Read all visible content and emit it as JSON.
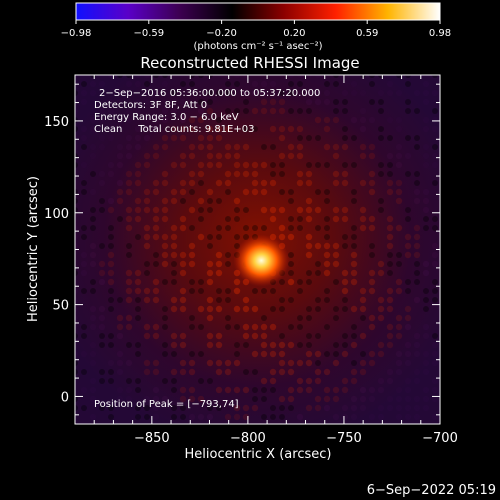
{
  "colorbar": {
    "ticks": [
      "-0.98",
      "-0.59",
      "-0.20",
      "0.20",
      "0.59",
      "0.98"
    ],
    "unit_label": "(photons cm⁻² s⁻¹ asec⁻²)",
    "colors": [
      "#1010ff",
      "#5a00c8",
      "#3c0050",
      "#000000",
      "#8c0000",
      "#ff2000",
      "#ffb400",
      "#ffffff"
    ]
  },
  "chart_data": {
    "type": "heatmap",
    "title": "Reconstructed RHESSI Image",
    "xlabel": "Heliocentric X (arcsec)",
    "ylabel": "Heliocentric Y (arcsec)",
    "xlim": [
      -890,
      -700
    ],
    "ylim": [
      -15,
      175
    ],
    "x_ticks": [
      {
        "value": -850,
        "label": "−850"
      },
      {
        "value": -800,
        "label": "−800"
      },
      {
        "value": -750,
        "label": "−750"
      },
      {
        "value": -700,
        "label": "−700"
      }
    ],
    "y_ticks": [
      {
        "value": 0,
        "label": "0"
      },
      {
        "value": 50,
        "label": "50"
      },
      {
        "value": 100,
        "label": "100"
      },
      {
        "value": 150,
        "label": "150"
      }
    ],
    "peak": {
      "x": -793,
      "y": 74
    },
    "annotations": [
      "2−Sep−2016 05:36:00.000 to 05:37:20.000",
      "Detectors: 3F 8F, Att 0",
      "Energy Range: 3.0 − 6.0 keV",
      "Clean     Total counts: 9.81E+03"
    ],
    "peak_label": "Position of Peak = [−793,74]"
  },
  "footer_timestamp": "6−Sep−2022 05:19"
}
